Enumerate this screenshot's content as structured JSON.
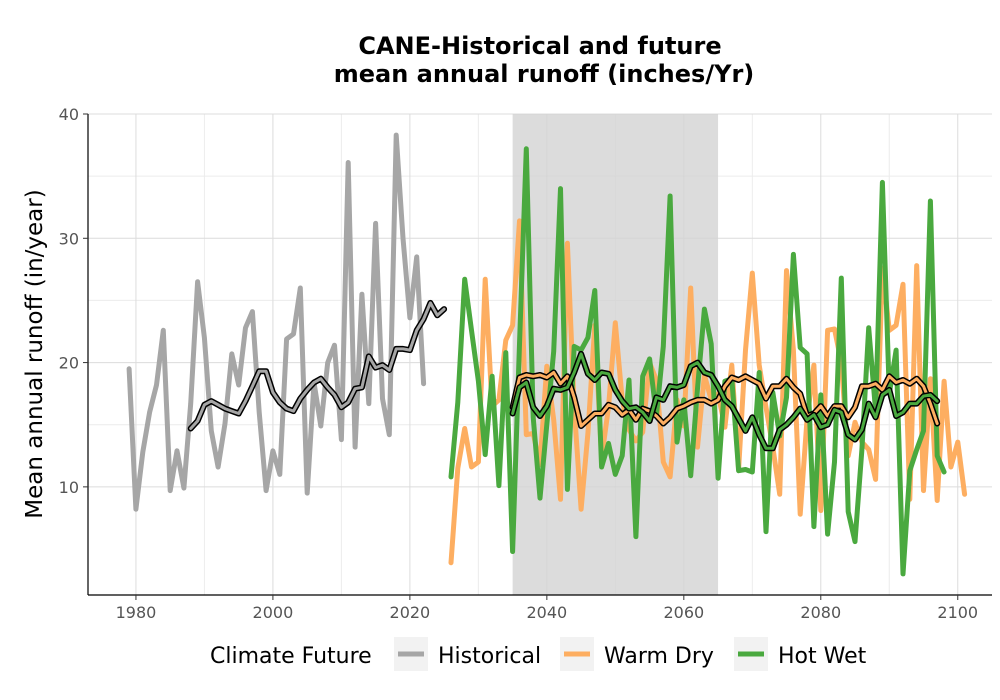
{
  "chart_data": {
    "type": "line",
    "title_line1": "CANE-Historical and future",
    "title_line2": "mean annual runoff (inches/Yr)",
    "xlabel": "",
    "ylabel": "Mean annual runoff (in/year)",
    "xlim": [
      1973,
      2105
    ],
    "ylim": [
      1.3,
      40
    ],
    "xticks": [
      1980,
      2000,
      2020,
      2040,
      2060,
      2080,
      2100
    ],
    "yticks": [
      10,
      20,
      30,
      40
    ],
    "grid": true,
    "shaded_period": [
      2035,
      2065
    ],
    "legend": {
      "title": "Climate Future",
      "position": "bottom",
      "entries": [
        "Historical",
        "Warm Dry",
        "Hot Wet"
      ]
    },
    "series": [
      {
        "name": "Historical",
        "color": "#a6a6a6",
        "x_start": 1979,
        "values": [
          19.5,
          8.2,
          12.8,
          16.0,
          18.2,
          22.6,
          9.7,
          12.9,
          9.9,
          16.7,
          26.5,
          22.0,
          14.5,
          11.6,
          15.1,
          20.7,
          18.2,
          22.8,
          24.1,
          16.0,
          9.7,
          12.9,
          11.0,
          21.9,
          22.3,
          26.0,
          9.5,
          18.4,
          14.9,
          20.0,
          21.4,
          13.8,
          36.1,
          13.2,
          25.5,
          16.7,
          31.2,
          17.1,
          14.2,
          38.3,
          30.0,
          23.6,
          28.5,
          18.3
        ]
      },
      {
        "name": "Historical (rolling mean)",
        "color": "#a6a6a6",
        "x_start": 1988,
        "values": [
          14.7,
          15.3,
          16.6,
          16.9,
          16.6,
          16.3,
          16.1,
          15.9,
          16.9,
          18.1,
          19.3,
          19.3,
          17.6,
          16.8,
          16.3,
          16.1,
          17.1,
          17.8,
          18.4,
          18.7,
          18.0,
          17.4,
          16.4,
          16.8,
          17.9,
          18.0,
          20.5,
          19.6,
          19.8,
          19.4,
          21.1,
          21.1,
          21.0,
          22.6,
          23.5,
          24.8,
          23.8,
          24.3
        ]
      },
      {
        "name": "Warm Dry",
        "color": "#fdae61",
        "x_start": 2026,
        "values": [
          3.9,
          11.5,
          14.7,
          11.6,
          12.0,
          26.7,
          16.5,
          17.0,
          21.8,
          23.0,
          31.4,
          14.2,
          14.3,
          11.8,
          19.7,
          15.4,
          9.0,
          29.6,
          16.4,
          8.2,
          14.3,
          23.0,
          12.3,
          16.4,
          23.2,
          17.0,
          14.6,
          13.7,
          14.4,
          20.0,
          18.6,
          12.0,
          10.8,
          17.0,
          14.9,
          26.0,
          13.2,
          19.0,
          17.0,
          17.5,
          14.8,
          19.8,
          11.4,
          21.0,
          27.2,
          19.8,
          16.4,
          13.2,
          9.4,
          27.4,
          21.0,
          7.8,
          15.5,
          19.8,
          8.1,
          22.6,
          22.7,
          20.0,
          12.5,
          15.2,
          13.6,
          13.0,
          10.6,
          27.6,
          22.6,
          23.0,
          26.3,
          9.0,
          27.8,
          9.7,
          18.7,
          8.9,
          18.5,
          11.6,
          13.6,
          9.4
        ]
      },
      {
        "name": "Hot Wet",
        "color": "#4aa93f",
        "x_start": 2026,
        "values": [
          10.8,
          16.8,
          26.7,
          22.6,
          18.5,
          12.6,
          18.9,
          10.1,
          20.8,
          4.8,
          21.5,
          37.2,
          15.6,
          9.1,
          15.0,
          20.9,
          34.0,
          9.8,
          21.3,
          21.0,
          22.0,
          25.8,
          11.6,
          13.5,
          11.0,
          12.5,
          18.6,
          6.0,
          18.9,
          20.3,
          15.7,
          21.3,
          33.4,
          13.6,
          17.0,
          10.9,
          17.9,
          24.3,
          21.5,
          10.7,
          18.5,
          18.7,
          11.3,
          11.4,
          11.2,
          19.2,
          6.4,
          17.6,
          14.1,
          17.2,
          28.7,
          21.2,
          20.7,
          6.8,
          17.4,
          6.2,
          12.0,
          26.8,
          8.0,
          5.6,
          13.0,
          22.8,
          16.1,
          34.5,
          17.5,
          21.0,
          3.0,
          11.3,
          13.0,
          14.5,
          33.0,
          12.5,
          11.2
        ]
      },
      {
        "name": "Warm Dry (rolling mean)",
        "color": "#fdae61",
        "x_start": 2035,
        "values": [
          16.4,
          18.8,
          19.0,
          18.9,
          19.0,
          18.8,
          19.2,
          18.3,
          18.9,
          17.2,
          14.9,
          15.4,
          15.9,
          15.9,
          16.6,
          16.4,
          15.8,
          16.2,
          15.4,
          16.3,
          16.1,
          15.7,
          15.1,
          15.6,
          16.3,
          16.5,
          16.8,
          17.0,
          17.0,
          16.7,
          17.0,
          18.1,
          18.8,
          18.6,
          18.9,
          18.6,
          18.3,
          17.1,
          18.1,
          18.1,
          18.7,
          18.0,
          17.5,
          15.7,
          15.9,
          16.5,
          15.7,
          16.5,
          16.5,
          15.6,
          16.4,
          18.1,
          18.1,
          18.3,
          17.8,
          18.9,
          18.4,
          18.6,
          18.3,
          18.7,
          18.1,
          16.7,
          15.1
        ]
      },
      {
        "name": "Hot Wet (rolling mean)",
        "color": "#4aa93f",
        "x_start": 2035,
        "values": [
          15.9,
          18.0,
          18.4,
          16.4,
          15.7,
          16.5,
          17.9,
          17.8,
          18.0,
          19.2,
          20.7,
          19.1,
          18.6,
          19.2,
          19.1,
          17.8,
          16.9,
          16.3,
          16.4,
          16.0,
          15.3,
          17.2,
          17.0,
          18.1,
          18.0,
          18.2,
          19.7,
          20.0,
          19.2,
          19.0,
          18.1,
          17.0,
          16.5,
          15.5,
          14.5,
          15.6,
          14.2,
          13.1,
          13.1,
          14.6,
          15.0,
          15.6,
          16.3,
          15.4,
          15.8,
          14.8,
          15.0,
          16.2,
          16.0,
          14.2,
          13.8,
          14.6,
          16.7,
          15.6,
          17.4,
          17.8,
          15.7,
          16.0,
          16.7,
          16.7,
          17.3,
          17.4,
          16.9
        ]
      }
    ]
  }
}
